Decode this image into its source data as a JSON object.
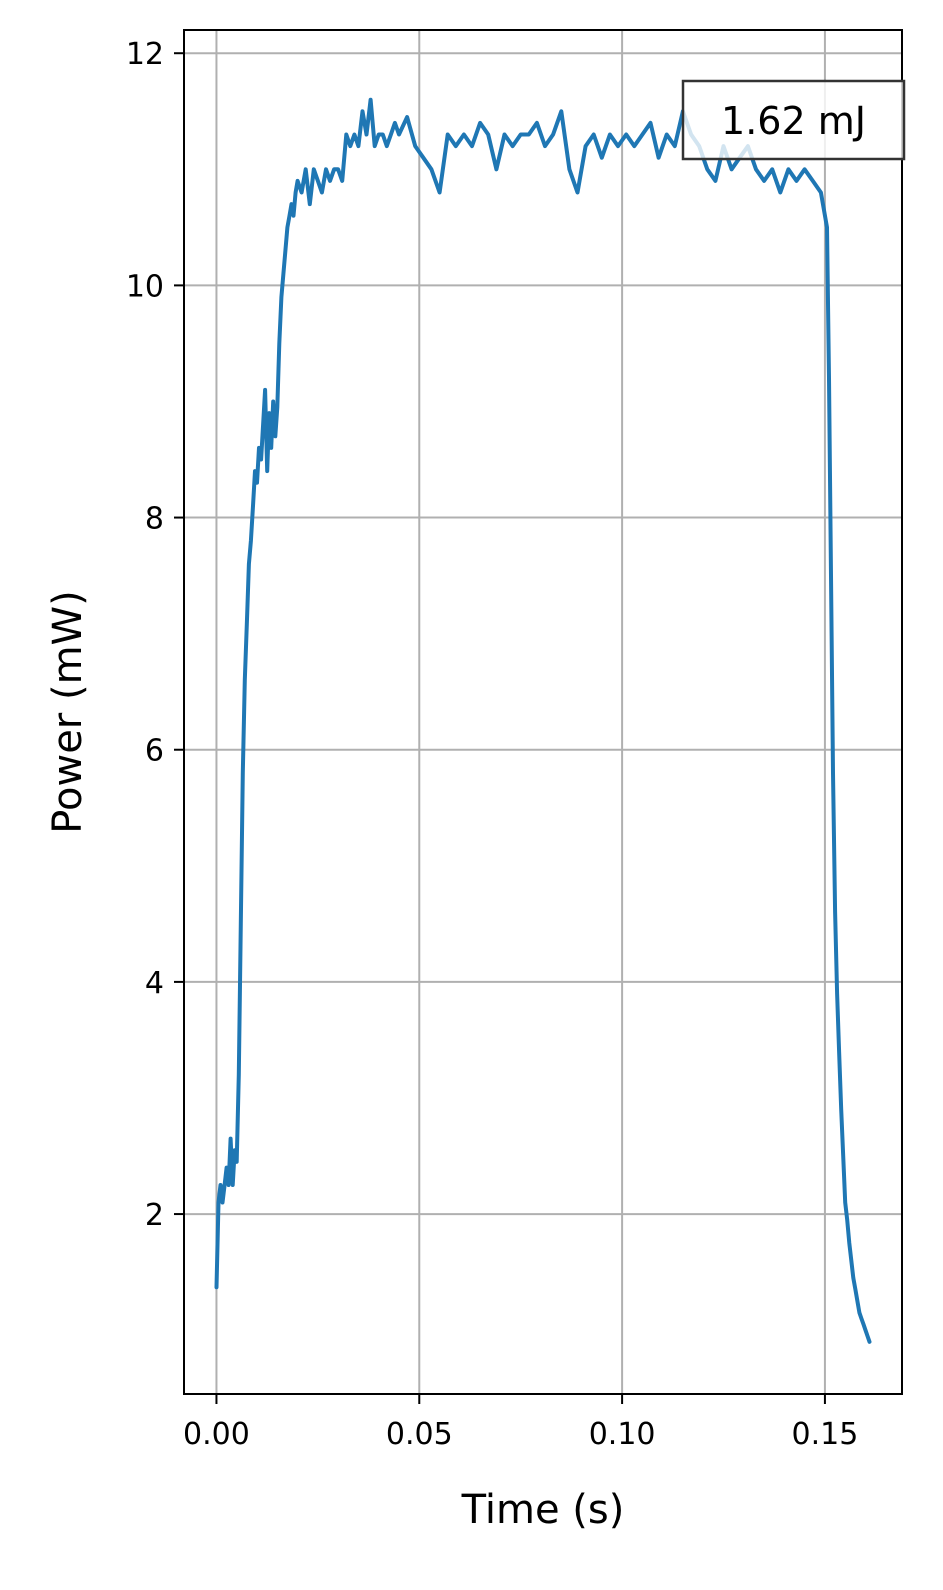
{
  "chart_data": {
    "type": "line",
    "title": "",
    "xlabel": "Time (s)",
    "ylabel": "Power (mW)",
    "xlim": [
      -0.008,
      0.169
    ],
    "ylim": [
      0.45,
      12.2
    ],
    "grid": true,
    "legend": "none",
    "x_ticks": [
      0.0,
      0.05,
      0.1,
      0.15
    ],
    "x_tick_labels": [
      "0.00",
      "0.05",
      "0.10",
      "0.15"
    ],
    "y_ticks": [
      2,
      4,
      6,
      8,
      10,
      12
    ],
    "y_tick_labels": [
      "2",
      "4",
      "6",
      "8",
      "10",
      "12"
    ],
    "annotation": {
      "text": "1.62 mJ",
      "position": "top-right"
    },
    "series": [
      {
        "color": "#1f77b4",
        "x": [
          0.0,
          0.0005,
          0.001,
          0.0015,
          0.002,
          0.0025,
          0.003,
          0.0035,
          0.004,
          0.0045,
          0.005,
          0.0055,
          0.006,
          0.0065,
          0.007,
          0.0075,
          0.008,
          0.0085,
          0.009,
          0.0095,
          0.01,
          0.0105,
          0.011,
          0.0115,
          0.012,
          0.0125,
          0.013,
          0.0135,
          0.014,
          0.0145,
          0.015,
          0.0155,
          0.016,
          0.0165,
          0.017,
          0.0175,
          0.018,
          0.0185,
          0.019,
          0.0195,
          0.02,
          0.021,
          0.022,
          0.023,
          0.024,
          0.025,
          0.026,
          0.027,
          0.028,
          0.029,
          0.03,
          0.031,
          0.032,
          0.033,
          0.034,
          0.035,
          0.036,
          0.037,
          0.038,
          0.039,
          0.04,
          0.041,
          0.042,
          0.043,
          0.044,
          0.045,
          0.047,
          0.049,
          0.051,
          0.053,
          0.055,
          0.057,
          0.059,
          0.061,
          0.063,
          0.065,
          0.067,
          0.069,
          0.071,
          0.073,
          0.075,
          0.077,
          0.079,
          0.081,
          0.083,
          0.085,
          0.087,
          0.089,
          0.091,
          0.093,
          0.095,
          0.097,
          0.099,
          0.101,
          0.103,
          0.105,
          0.107,
          0.109,
          0.111,
          0.113,
          0.115,
          0.117,
          0.119,
          0.121,
          0.123,
          0.125,
          0.127,
          0.129,
          0.131,
          0.133,
          0.135,
          0.137,
          0.139,
          0.141,
          0.143,
          0.145,
          0.147,
          0.149,
          0.1505,
          0.151,
          0.1515,
          0.152,
          0.1525,
          0.153,
          0.1535,
          0.154,
          0.1545,
          0.155,
          0.1555,
          0.156,
          0.1565,
          0.157,
          0.1575,
          0.158,
          0.1585,
          0.159,
          0.1595,
          0.16,
          0.1605,
          0.161
        ],
        "y": [
          1.37,
          2.1,
          2.25,
          2.1,
          2.25,
          2.4,
          2.25,
          2.65,
          2.25,
          2.55,
          2.45,
          3.2,
          4.5,
          5.8,
          6.6,
          7.1,
          7.6,
          7.8,
          8.1,
          8.4,
          8.3,
          8.6,
          8.5,
          8.8,
          9.1,
          8.4,
          8.9,
          8.6,
          9.0,
          8.7,
          8.95,
          9.5,
          9.9,
          10.1,
          10.3,
          10.5,
          10.6,
          10.7,
          10.6,
          10.8,
          10.9,
          10.8,
          11.0,
          10.7,
          11.0,
          10.9,
          10.8,
          11.0,
          10.9,
          11.0,
          11.0,
          10.9,
          11.3,
          11.2,
          11.3,
          11.2,
          11.5,
          11.3,
          11.6,
          11.2,
          11.3,
          11.3,
          11.2,
          11.3,
          11.4,
          11.3,
          11.45,
          11.2,
          11.1,
          11.0,
          10.8,
          11.3,
          11.2,
          11.3,
          11.2,
          11.4,
          11.3,
          11.0,
          11.3,
          11.2,
          11.3,
          11.3,
          11.4,
          11.2,
          11.3,
          11.5,
          11.0,
          10.8,
          11.2,
          11.3,
          11.1,
          11.3,
          11.2,
          11.3,
          11.2,
          11.3,
          11.4,
          11.1,
          11.3,
          11.2,
          11.5,
          11.3,
          11.2,
          11.0,
          10.9,
          11.2,
          11.0,
          11.1,
          11.2,
          11.0,
          10.9,
          11.0,
          10.8,
          11.0,
          10.9,
          11.0,
          10.9,
          10.8,
          10.5,
          9.2,
          7.5,
          5.8,
          4.6,
          3.9,
          3.4,
          2.9,
          2.5,
          2.1,
          1.95,
          1.75,
          1.6,
          1.45,
          1.35,
          1.25,
          1.15,
          1.1,
          1.05,
          1.0,
          0.95,
          0.9
        ]
      }
    ]
  }
}
